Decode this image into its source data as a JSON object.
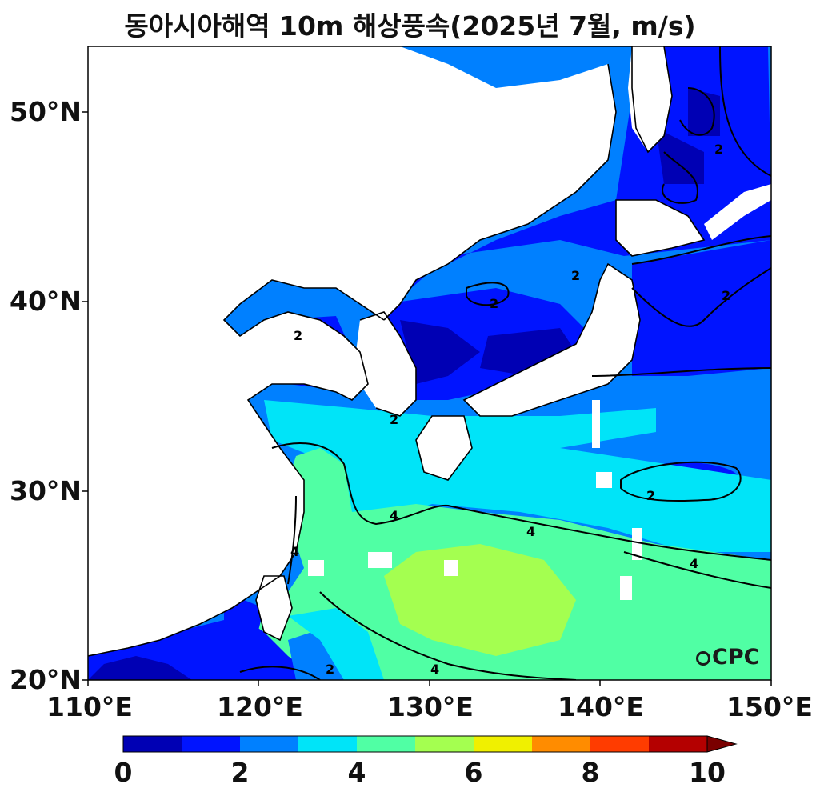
{
  "title": "동아시아해역 10m 해상풍속(2025년 7월, m/s)",
  "axes": {
    "lat_labels": [
      "50°N",
      "40°N",
      "30°N",
      "20°N"
    ],
    "lon_labels": [
      "110°E",
      "120°E",
      "130°E",
      "140°E",
      "150°E"
    ]
  },
  "colorbar": {
    "labels": [
      "0",
      "2",
      "4",
      "6",
      "8",
      "10"
    ],
    "colors": [
      "#0000b4",
      "#0014ff",
      "#0080ff",
      "#00e4f8",
      "#50ffa4",
      "#a4ff50",
      "#f0f000",
      "#ff8c00",
      "#ff3c00",
      "#b40000",
      "#7a0000"
    ],
    "extend": "max"
  },
  "contour_labels": {
    "two": "2",
    "four": "4"
  },
  "logo": "CPC"
}
